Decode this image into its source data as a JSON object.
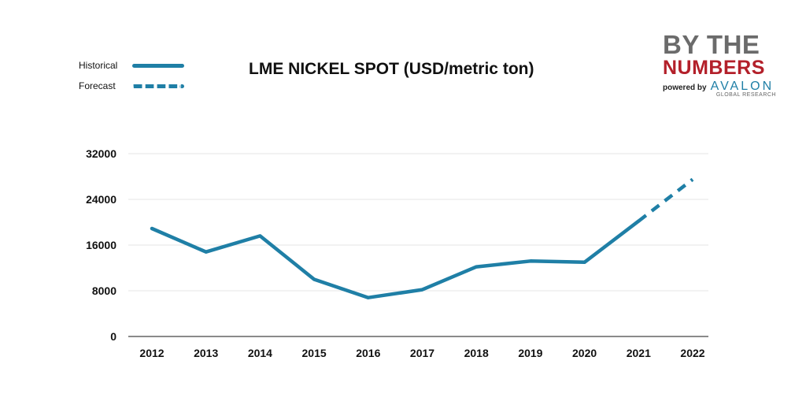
{
  "legend": {
    "historical": "Historical",
    "forecast": "Forecast"
  },
  "brand": {
    "line1": "BY THE",
    "line2": "NUMBERS",
    "powered": "powered by",
    "avalon": "AVALON",
    "global": "GLOBAL RESEARCH"
  },
  "colors": {
    "series": "#1f7fa6",
    "grid": "#e6e6e6",
    "axis": "#444444"
  },
  "chart_data": {
    "type": "line",
    "title": "LME NICKEL SPOT (USD/metric ton)",
    "xlabel": "",
    "ylabel": "",
    "categories": [
      "2012",
      "2013",
      "2014",
      "2015",
      "2016",
      "2017",
      "2018",
      "2019",
      "2020",
      "2021",
      "2022"
    ],
    "yticks": [
      0,
      8000,
      16000,
      24000,
      32000
    ],
    "ylim": [
      0,
      32000
    ],
    "series": [
      {
        "name": "Historical",
        "style": "solid",
        "values": [
          18900,
          14800,
          17600,
          10000,
          6800,
          8200,
          12200,
          13200,
          13000,
          20200,
          null
        ]
      },
      {
        "name": "Forecast",
        "style": "dashed",
        "values": [
          null,
          null,
          null,
          null,
          null,
          null,
          null,
          null,
          null,
          20200,
          27500
        ]
      }
    ],
    "grid": true,
    "legend_position": "top-left"
  }
}
